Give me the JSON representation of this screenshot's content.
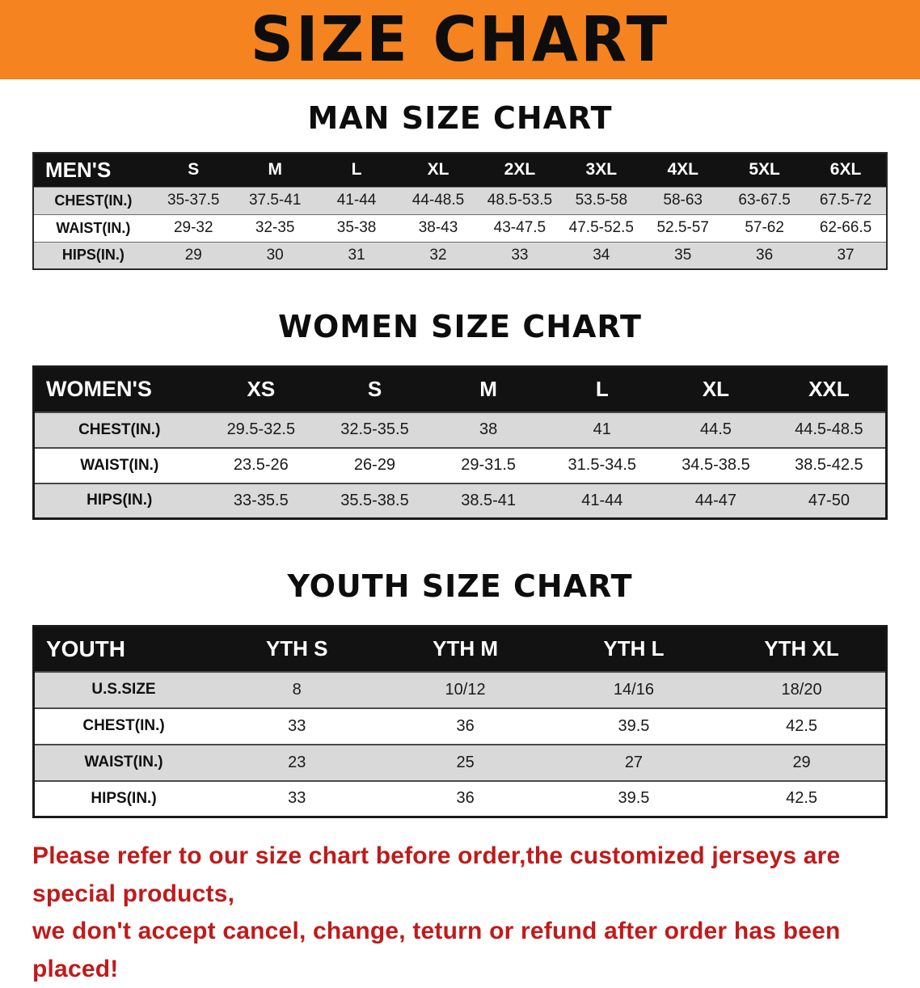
{
  "banner": {
    "title": "SIZE CHART"
  },
  "sections": {
    "men": {
      "heading": "MAN SIZE CHART",
      "table": {
        "header": [
          "MEN'S",
          "S",
          "M",
          "L",
          "XL",
          "2XL",
          "3XL",
          "4XL",
          "5XL",
          "6XL"
        ],
        "rows": [
          [
            "CHEST(IN.)",
            "35-37.5",
            "37.5-41",
            "41-44",
            "44-48.5",
            "48.5-53.5",
            "53.5-58",
            "58-63",
            "63-67.5",
            "67.5-72"
          ],
          [
            "WAIST(IN.)",
            "29-32",
            "32-35",
            "35-38",
            "38-43",
            "43-47.5",
            "47.5-52.5",
            "52.5-57",
            "57-62",
            "62-66.5"
          ],
          [
            "HIPS(IN.)",
            "29",
            "30",
            "31",
            "32",
            "33",
            "34",
            "35",
            "36",
            "37"
          ]
        ]
      }
    },
    "women": {
      "heading": "WOMEN SIZE CHART",
      "table": {
        "header": [
          "WOMEN'S",
          "XS",
          "S",
          "M",
          "L",
          "XL",
          "XXL"
        ],
        "rows": [
          [
            "CHEST(IN.)",
            "29.5-32.5",
            "32.5-35.5",
            "38",
            "41",
            "44.5",
            "44.5-48.5"
          ],
          [
            "WAIST(IN.)",
            "23.5-26",
            "26-29",
            "29-31.5",
            "31.5-34.5",
            "34.5-38.5",
            "38.5-42.5"
          ],
          [
            "HIPS(IN.)",
            "33-35.5",
            "35.5-38.5",
            "38.5-41",
            "41-44",
            "44-47",
            "47-50"
          ]
        ]
      }
    },
    "youth": {
      "heading": "YOUTH SIZE CHART",
      "table": {
        "header": [
          "YOUTH",
          "YTH S",
          "YTH M",
          "YTH L",
          "YTH XL"
        ],
        "rows": [
          [
            "U.S.SIZE",
            "8",
            "10/12",
            "14/16",
            "18/20"
          ],
          [
            "CHEST(IN.)",
            "33",
            "36",
            "39.5",
            "42.5"
          ],
          [
            "WAIST(IN.)",
            "23",
            "25",
            "27",
            "29"
          ],
          [
            "HIPS(IN.)",
            "33",
            "36",
            "39.5",
            "42.5"
          ]
        ]
      }
    }
  },
  "footer": {
    "line1": "Please refer to our size chart before order,the customized jerseys are special products,",
    "line2": "we don't accept cancel, change, teturn or refund after order has been placed!"
  },
  "colors": {
    "banner_orange": "#F5831F",
    "header_black": "#121212",
    "row_gray": "#D9D9D9",
    "warning_red": "#C11A1A"
  }
}
